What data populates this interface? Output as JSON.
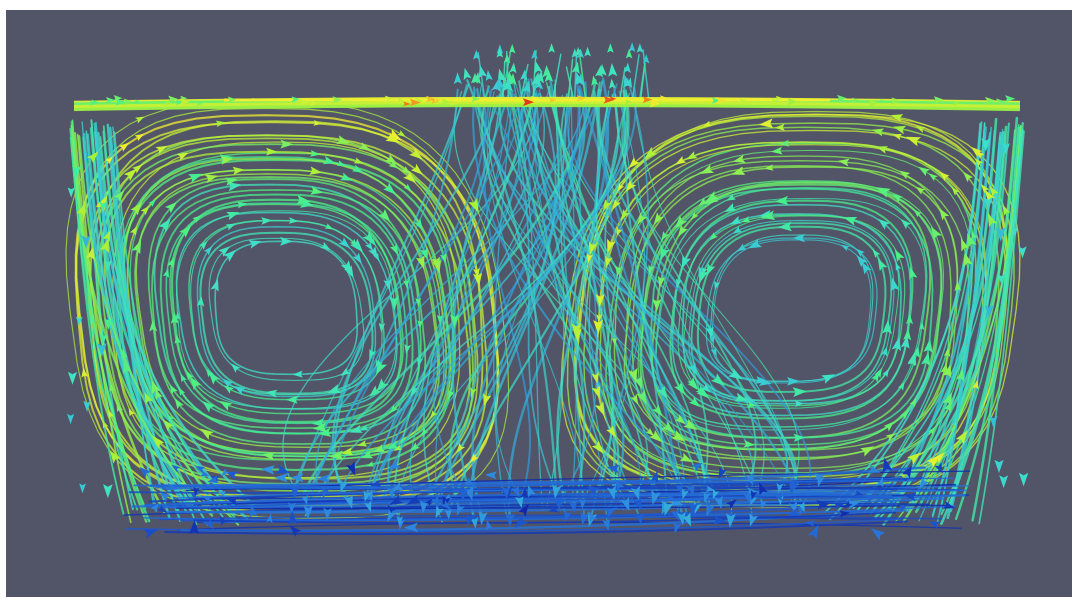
{
  "viewer": {
    "background_color": "#525468",
    "visualization": "streamline-glyph-field",
    "colormap": {
      "name": "jet",
      "stops": [
        "#0a1a9e",
        "#1f5fd4",
        "#2f8fe0",
        "#35c0d8",
        "#3fe0c8",
        "#45f08a",
        "#a8f03a",
        "#f0f030",
        "#f09020",
        "#e01010"
      ]
    },
    "field": {
      "vortex_count": 2,
      "seed": 7
    }
  }
}
